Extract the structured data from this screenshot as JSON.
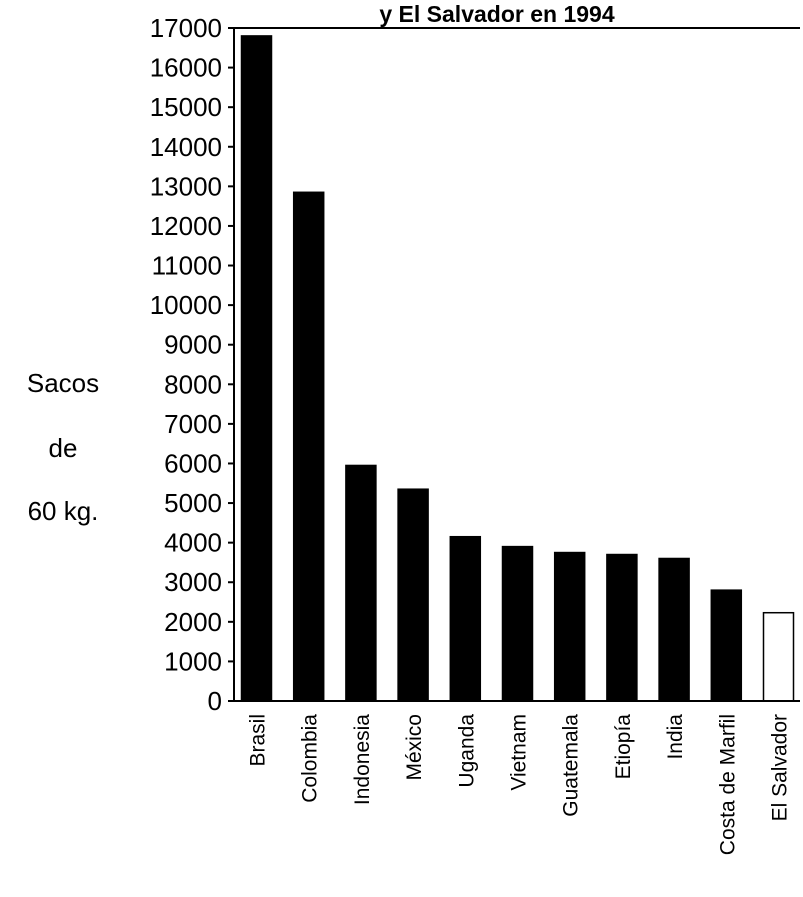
{
  "chart_data": {
    "type": "bar",
    "title": "y El Salvador en 1994",
    "ylabel_lines": [
      "Sacos",
      "de",
      "60 kg."
    ],
    "ylim": [
      0,
      17000
    ],
    "yticks": [
      0,
      1000,
      2000,
      3000,
      4000,
      5000,
      6000,
      7000,
      8000,
      9000,
      10000,
      11000,
      12000,
      13000,
      14000,
      15000,
      16000,
      17000
    ],
    "categories": [
      "Brasil",
      "Colombia",
      "Indonesia",
      "México",
      "Uganda",
      "Vietnam",
      "Guatemala",
      "Etiopía",
      "India",
      "Costa de Marfil",
      "El Salvador"
    ],
    "values": [
      16800,
      12850,
      5950,
      5350,
      4150,
      3900,
      3750,
      3700,
      3600,
      2800,
      2230
    ],
    "bar_colors": [
      "#000000",
      "#000000",
      "#000000",
      "#000000",
      "#000000",
      "#000000",
      "#000000",
      "#000000",
      "#000000",
      "#000000",
      "#ffffff"
    ]
  }
}
